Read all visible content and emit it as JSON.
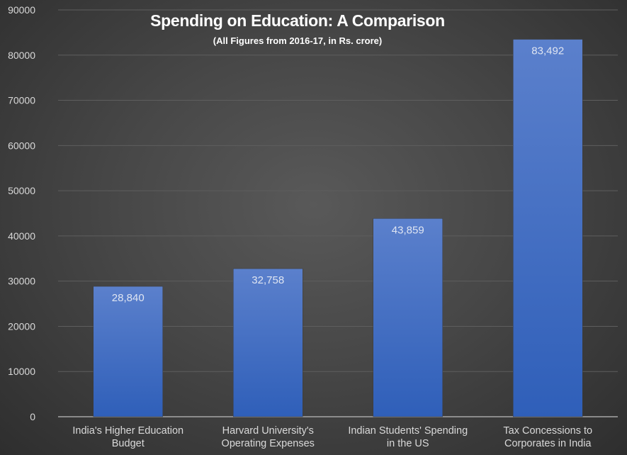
{
  "chart_data": {
    "type": "bar",
    "title": "Spending on Education: A Comparison",
    "subtitle": "(All Figures from 2016-17, in Rs. crore)",
    "categories": [
      [
        "India's Higher Education",
        "Budget"
      ],
      [
        "Harvard University's",
        "Operating Expenses"
      ],
      [
        "Indian Students' Spending",
        "in the US"
      ],
      [
        "Tax Concessions to",
        "Corporates in India"
      ]
    ],
    "values": [
      28840,
      32758,
      43859,
      83492
    ],
    "data_labels": [
      "28,840",
      "32,758",
      "43,859",
      "83,492"
    ],
    "xlabel": "",
    "ylabel": "",
    "ylim": [
      0,
      90000
    ],
    "yticks": [
      0,
      10000,
      20000,
      30000,
      40000,
      50000,
      60000,
      70000,
      80000,
      90000
    ],
    "grid": true,
    "legend": "none",
    "colors": {
      "bar_top": "#5b80cc",
      "bar_bottom": "#2f5fb9",
      "background": "#474747",
      "text": "#d9d9d9",
      "grid": "#5e5e5e"
    }
  }
}
